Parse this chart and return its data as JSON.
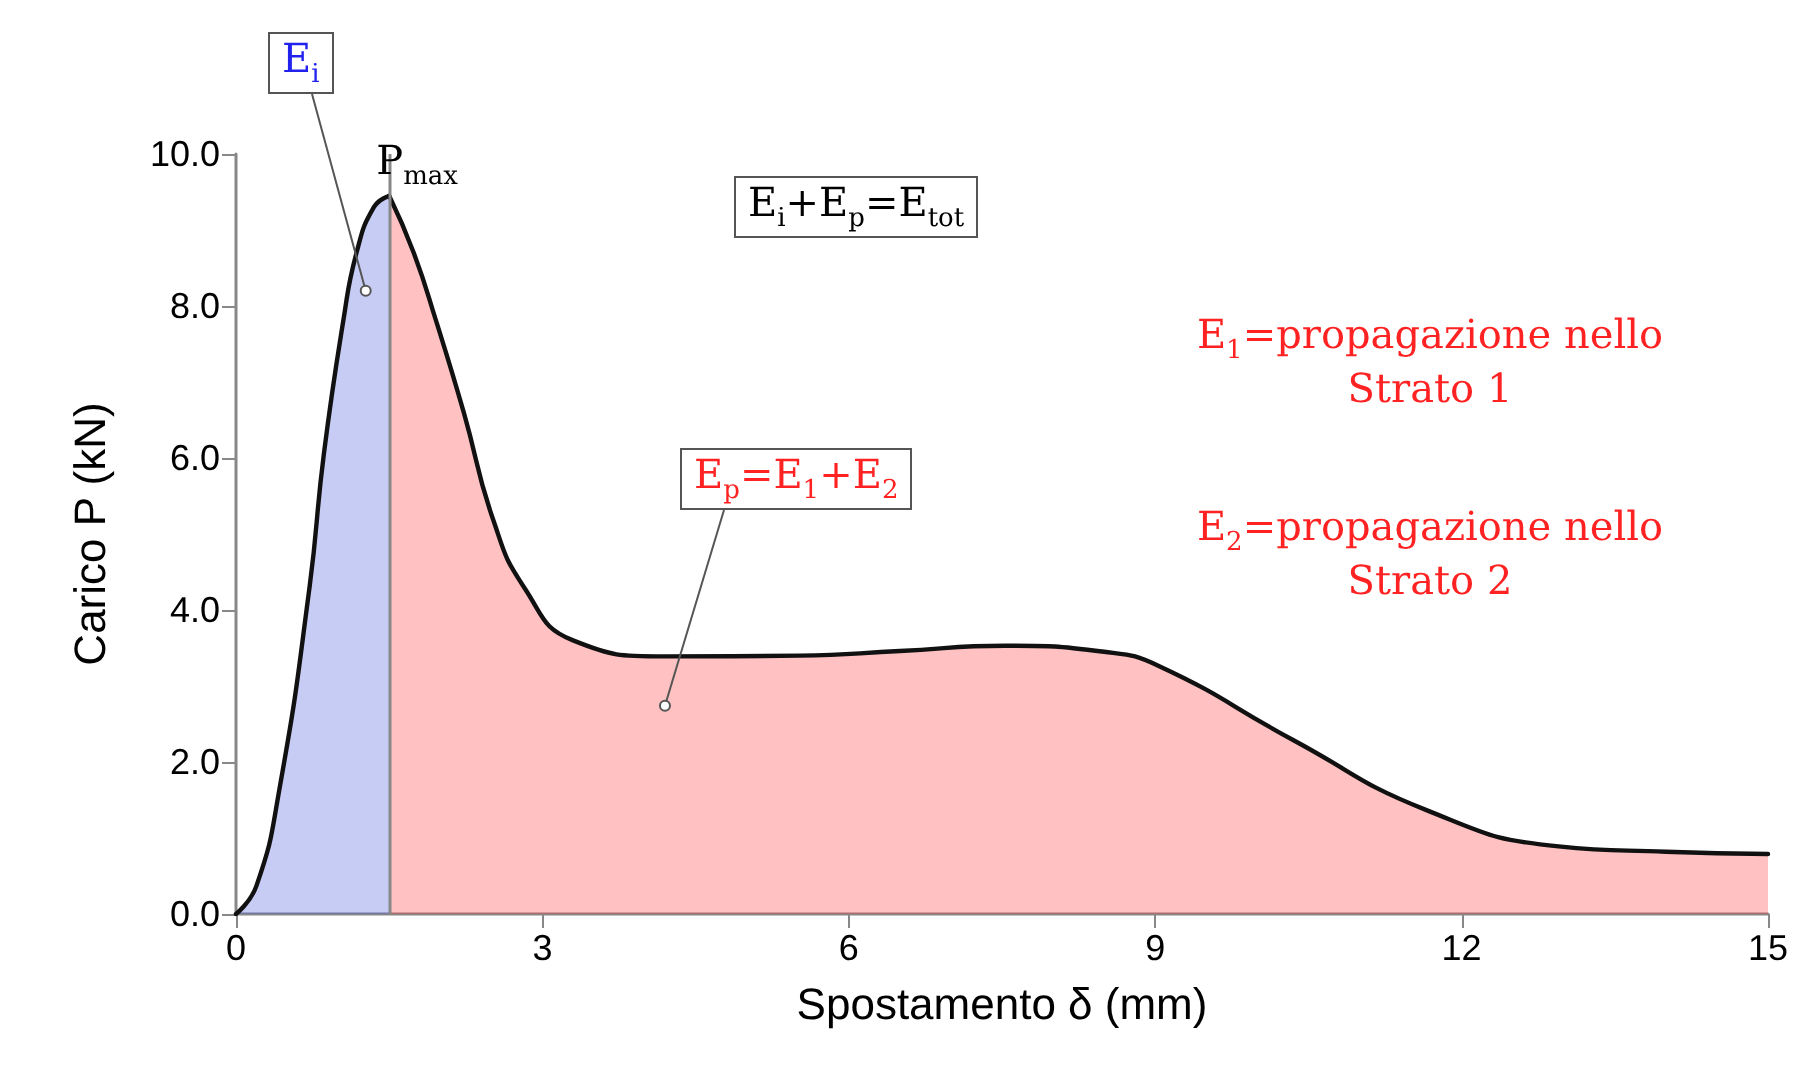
{
  "chart_data": {
    "type": "area",
    "xlabel": "Spostamento δ (mm)",
    "ylabel": "Carico P (kN)",
    "xlim": [
      0,
      15
    ],
    "xticks": [
      0,
      3,
      6,
      9,
      12,
      15
    ],
    "ylim": [
      0,
      10
    ],
    "yticks": [
      {
        "value": 0,
        "label": "0.0"
      },
      {
        "value": 2,
        "label": "2.0"
      },
      {
        "value": 4,
        "label": "4.0"
      },
      {
        "value": 6,
        "label": "6.0"
      },
      {
        "value": 8,
        "label": "8.0"
      },
      {
        "value": 10,
        "label": "10.0"
      }
    ],
    "series": [
      {
        "color": "#4455dd",
        "x": [
          0,
          0.2,
          0.43,
          0.72,
          0.86,
          1.05,
          1.18,
          1.35,
          1.5
        ],
        "values": [
          0,
          0.37,
          1.68,
          4.3,
          6.05,
          7.8,
          8.7,
          9.3,
          9.45
        ]
      },
      {
        "color": "#ff3333",
        "x": [
          1.5,
          1.74,
          1.96,
          2.23,
          2.52,
          2.82,
          3.3,
          4.2,
          5.52,
          6.5,
          7.53,
          8.5,
          9.04,
          10.35,
          11.65,
          12.95,
          14,
          15
        ],
        "values": [
          9.45,
          8.7,
          7.8,
          6.6,
          5.18,
          4.3,
          3.6,
          3.39,
          3.4,
          3.46,
          3.53,
          3.45,
          3.26,
          2.29,
          1.37,
          0.89,
          0.82,
          0.79
        ]
      }
    ],
    "ref_lines": [
      {
        "axis": "x",
        "value": 1.5,
        "color": "#888888"
      }
    ],
    "annotations": [
      {
        "text": "E$_{i}$",
        "x": 1.27,
        "y": 8.2
      },
      {
        "text": "P$_{max}$",
        "x": 1.5,
        "y": 9.45
      },
      "E$_{i}$+E$_{p}$=E$_{tot}$",
      {
        "text": "E$_{p}$=E$_{1}$+E$_{2}$",
        "x": 4.2,
        "y": 2.74
      },
      "E$_{1}$=propagazione nello Strato 1",
      "E$_{2}$=propagazione nello Strato 2"
    ],
    "grid": false,
    "marker": "none",
    "line_style": "solid"
  }
}
